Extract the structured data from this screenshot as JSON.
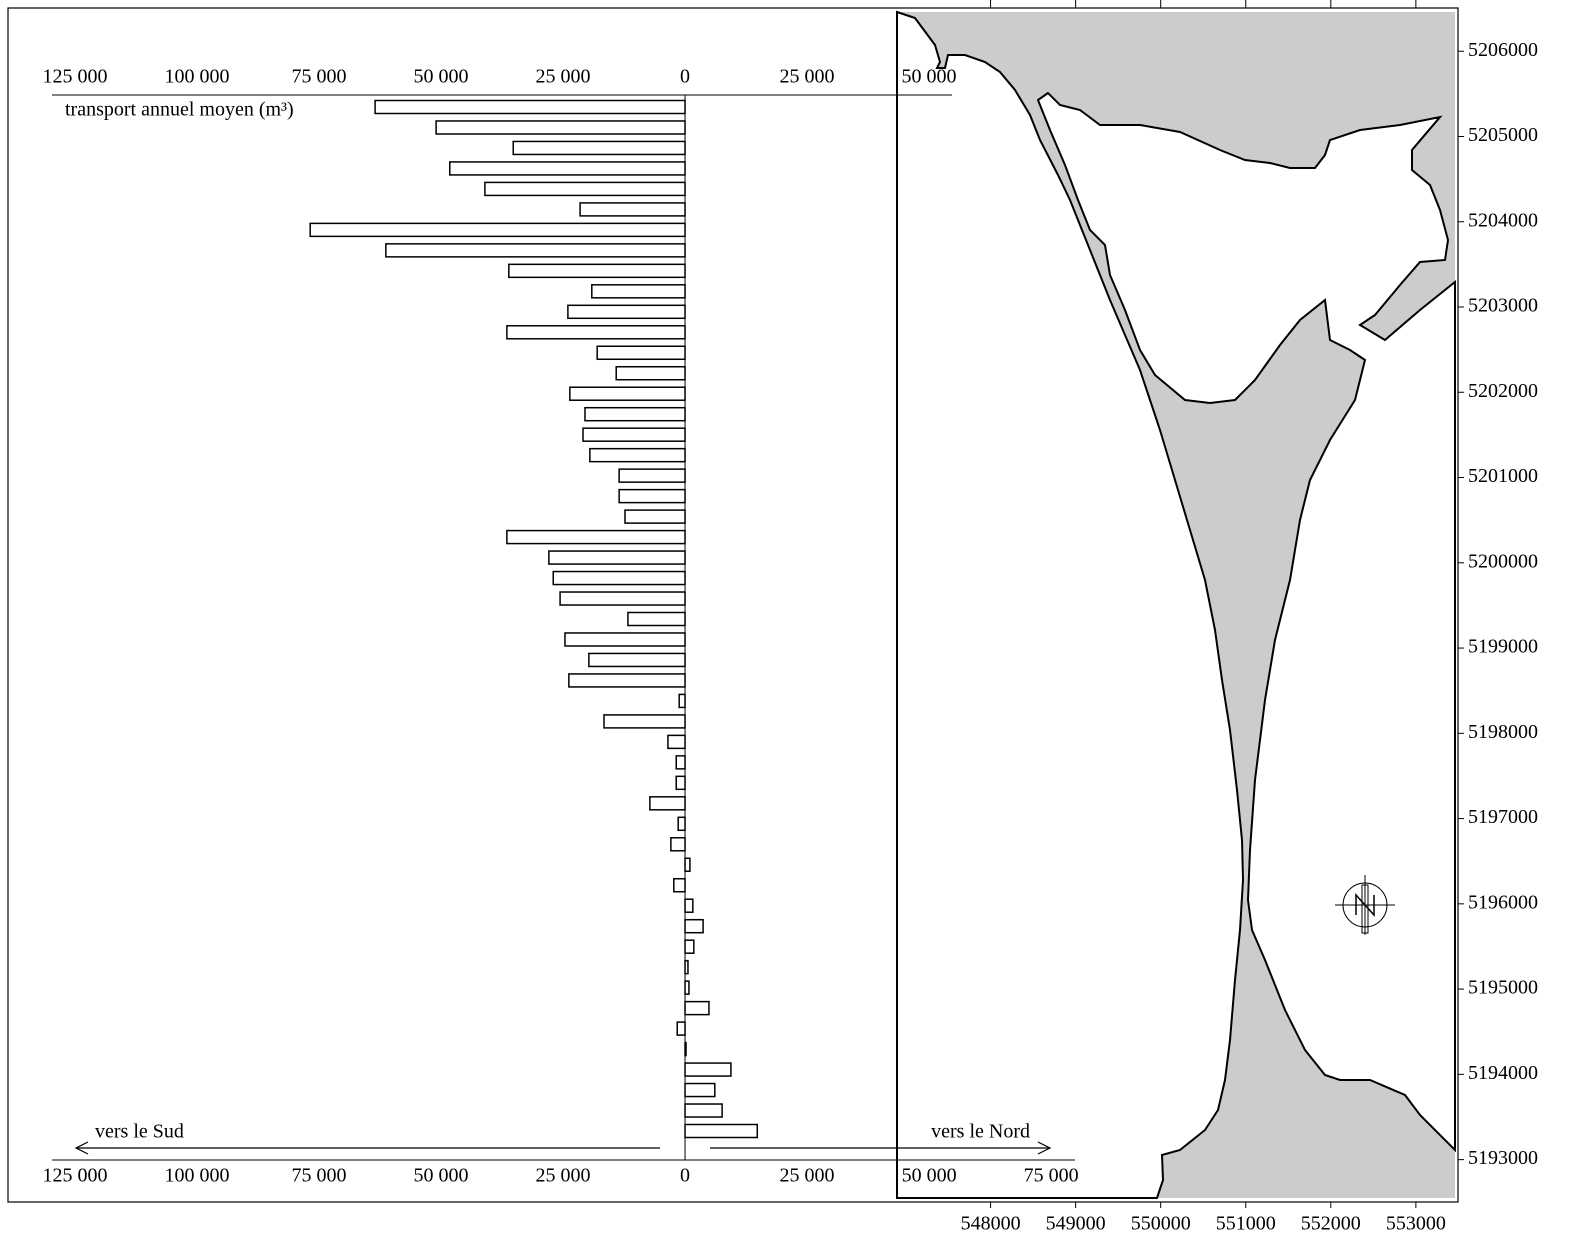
{
  "chart_data": [
    {
      "type": "bar",
      "orientation": "horizontal",
      "axis_label": "transport annuel moyen (m³)",
      "annotations": [
        "vers le Sud",
        "vers le Nord"
      ],
      "color": "#ffffff",
      "edgecolor": "#000000",
      "values": [
        -63500,
        -51000,
        -35200,
        -48200,
        -41000,
        -21500,
        -76800,
        -61300,
        -36100,
        -19100,
        -24000,
        -36500,
        -18000,
        -14100,
        -23600,
        -20500,
        -20900,
        -19500,
        -13500,
        -13500,
        -12300,
        -36500,
        -27900,
        -27000,
        -25600,
        -11700,
        -24600,
        -19700,
        -23800,
        -1200,
        -16600,
        -3500,
        -1800,
        -1800,
        -7200,
        -1400,
        -2900,
        1000,
        -2300,
        1600,
        3700,
        1800,
        600,
        800,
        4900,
        -1600,
        200,
        9400,
        6100,
        7600,
        14800
      ],
      "xlim": [
        -129700,
        79900
      ],
      "xticks": [
        {
          "value": -125000,
          "label": "125 000"
        },
        {
          "value": -100000,
          "label": "100 000"
        },
        {
          "value": -75000,
          "label": "75 000"
        },
        {
          "value": -50000,
          "label": "50 000"
        },
        {
          "value": -25000,
          "label": "25 000"
        },
        0,
        {
          "value": 25000,
          "label": "25 000"
        },
        {
          "value": 50000,
          "label": "50 000"
        },
        {
          "value": 75000,
          "label": "75 000"
        }
      ],
      "x2lim": [
        -129700,
        54700
      ],
      "x2ticks": [
        {
          "value": -125000,
          "label": "125 000"
        },
        {
          "value": -100000,
          "label": "100 000"
        },
        {
          "value": -75000,
          "label": "75 000"
        },
        {
          "value": -50000,
          "label": "50 000"
        },
        {
          "value": -25000,
          "label": "25 000"
        },
        0,
        {
          "value": 25000,
          "label": "25 000"
        },
        {
          "value": 50000,
          "label": "50 000"
        }
      ]
    },
    {
      "type": "map",
      "land_color": "#cccccc",
      "xlim": [
        546900,
        553460
      ],
      "xticks": [
        548000,
        549000,
        550000,
        551000,
        552000,
        553000
      ],
      "ylim": [
        5192550,
        5206460
      ],
      "yticks": [
        5193000,
        5194000,
        5195000,
        5196000,
        5197000,
        5198000,
        5199000,
        5200000,
        5201000,
        5202000,
        5203000,
        5204000,
        5205000,
        5206000
      ]
    }
  ]
}
